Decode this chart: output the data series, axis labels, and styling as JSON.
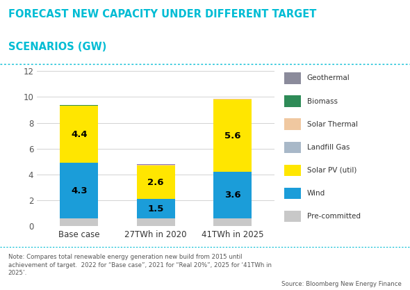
{
  "title_line1": "FORECAST NEW CAPACITY UNDER DIFFERENT TARGET",
  "title_line2": "SCENARIOS (GW)",
  "title_color": "#00bcd4",
  "categories": [
    "Base case",
    "27TWh in 2020",
    "41TWh in 2025"
  ],
  "segments": {
    "Pre-committed": [
      0.6,
      0.6,
      0.6
    ],
    "Wind": [
      4.3,
      1.5,
      3.6
    ],
    "Solar PV (util)": [
      4.4,
      2.6,
      5.6
    ],
    "Landfill Gas": [
      0.02,
      0.02,
      0.02
    ],
    "Solar Thermal": [
      0.02,
      0.02,
      0.02
    ],
    "Biomass": [
      0.02,
      0.02,
      0.02
    ],
    "Geothermal": [
      0.02,
      0.02,
      0.02
    ]
  },
  "colors": {
    "Pre-committed": "#c8c8c8",
    "Wind": "#1b9dd9",
    "Solar PV (util)": "#ffe600",
    "Landfill Gas": "#a8b4c0",
    "Solar Thermal": "#f0c8a0",
    "Biomass": "#2e8b57",
    "Geothermal": "#8b7ab8"
  },
  "legend_colors": {
    "Geothermal": "#8b8b9b",
    "Biomass": "#2e8b57",
    "Solar Thermal": "#f0c8a0",
    "Landfill Gas": "#a8b8c8",
    "Solar PV (util)": "#ffe600",
    "Wind": "#1b9dd9",
    "Pre-committed": "#c8c8c8"
  },
  "ylim": [
    0,
    12
  ],
  "yticks": [
    0,
    2,
    4,
    6,
    8,
    10,
    12
  ],
  "note": "Note: Compares total renewable energy generation new build from 2015 until\nachievement of target.  2022 for “Base case”, 2021 for “Real 20%”, 2025 for ‘41TWh in\n2025’.",
  "source": "Source: Bloomberg New Energy Finance",
  "bg_color": "#ffffff",
  "bar_width": 0.5
}
